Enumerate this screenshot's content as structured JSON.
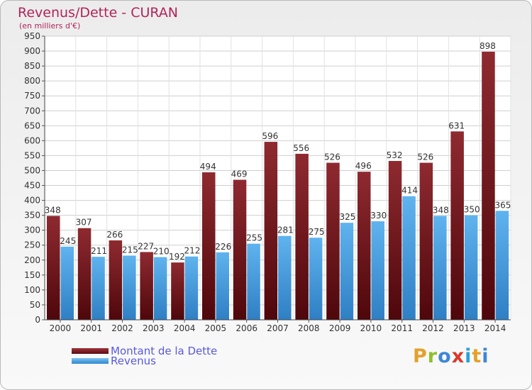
{
  "header": {
    "title": "Revenus/Dette - CURAN",
    "subtitle": "(en milliers d'€)"
  },
  "legend": {
    "items": [
      {
        "label": "Montant de la Dette",
        "color": "#7a1e22"
      },
      {
        "label": "Revenus",
        "color": "#4aa3e6"
      }
    ]
  },
  "logo": {
    "text": "Proxiti",
    "colors": [
      "#e4a12a",
      "#8fbf2a",
      "#3e86d8",
      "#d83a2a",
      "#2aa0d8",
      "#e4a12a",
      "#3e86d8"
    ]
  },
  "chart_data": {
    "type": "bar",
    "categories": [
      "2000",
      "2001",
      "2002",
      "2003",
      "2004",
      "2005",
      "2006",
      "2007",
      "2008",
      "2009",
      "2010",
      "2011",
      "2012",
      "2013",
      "2014"
    ],
    "series": [
      {
        "name": "Montant de la Dette",
        "color": "#7a1e22",
        "values": [
          348,
          307,
          266,
          227,
          192,
          494,
          469,
          596,
          556,
          526,
          496,
          532,
          526,
          631,
          898
        ]
      },
      {
        "name": "Revenus",
        "color": "#4aa3e6",
        "values": [
          245,
          211,
          215,
          210,
          212,
          226,
          255,
          281,
          275,
          325,
          330,
          414,
          348,
          350,
          365
        ]
      }
    ],
    "ylim": [
      0,
      950
    ],
    "ytick_step": 50,
    "grid": true,
    "xlabel": "",
    "ylabel": ""
  }
}
